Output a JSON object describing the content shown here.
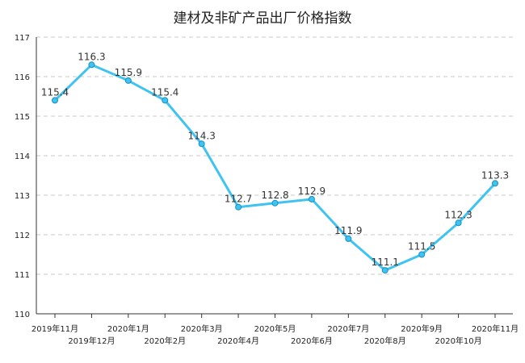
{
  "chart_data": {
    "type": "line",
    "title": "建材及非矿产品出厂价格指数",
    "xlabel": "",
    "ylabel": "",
    "categories": [
      "2019年11月",
      "2019年12月",
      "2020年1月",
      "2020年2月",
      "2020年3月",
      "2020年4月",
      "2020年5月",
      "2020年6月",
      "2020年7月",
      "2020年8月",
      "2020年9月",
      "2020年10月",
      "2020年11月"
    ],
    "values": [
      115.4,
      116.3,
      115.9,
      115.4,
      114.3,
      112.7,
      112.8,
      112.9,
      111.9,
      111.1,
      111.5,
      112.3,
      113.3
    ],
    "ylim": [
      110,
      117
    ],
    "yticks": [
      110,
      111,
      112,
      113,
      114,
      115,
      116,
      117
    ],
    "grid": true,
    "legend": "none",
    "line_color": "#3fc3f0",
    "marker_color": "#3fc3f0"
  }
}
